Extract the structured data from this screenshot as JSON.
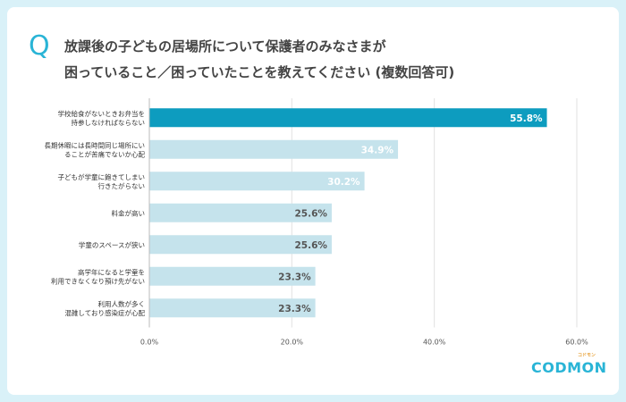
{
  "question_mark": "Q",
  "title_lines": [
    "放課後の子どもの居場所について保護者のみなさまが",
    "困っていること／困っていたことを教えてください (複数回答可)"
  ],
  "logo": {
    "text": "CODMON",
    "sub": "コドモン"
  },
  "colors": {
    "highlight": "#0d9cbf",
    "bar": "#c5e3ec",
    "label_light": "#ffffff",
    "label_dark": "#555555"
  },
  "chart_data": {
    "type": "bar",
    "orientation": "horizontal",
    "categories": [
      [
        "学校給食がないときお弁当を",
        "持参しなければならない"
      ],
      [
        "長期休暇には長時間同じ場所にい",
        "ることが苦痛でないか心配"
      ],
      [
        "子どもが学童に飽きてしまい",
        "行きたがらない"
      ],
      [
        "料金が高い"
      ],
      [
        "学童のスペースが狭い"
      ],
      [
        "高学年になると学童を",
        "利用できなくなり預け先がない"
      ],
      [
        "利用人数が多く",
        "混雑しており感染症が心配"
      ]
    ],
    "values": [
      55.8,
      34.9,
      30.2,
      25.6,
      25.6,
      23.3,
      23.3
    ],
    "value_labels": [
      "55.8%",
      "34.9%",
      "30.2%",
      "25.6%",
      "25.6%",
      "23.3%",
      "23.3%"
    ],
    "xlim": [
      0,
      60
    ],
    "x_ticks": [
      "0.0%",
      "20.0%",
      "40.0%",
      "60.0%"
    ],
    "x_tick_values": [
      0,
      20,
      40,
      60
    ],
    "grid": true
  }
}
